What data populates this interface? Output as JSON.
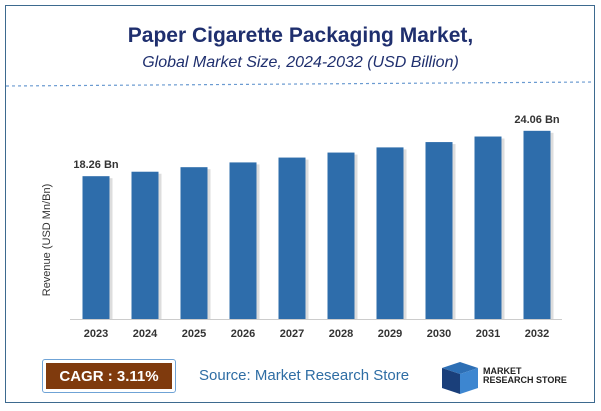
{
  "chart_data": {
    "type": "bar",
    "title": "Paper Cigarette Packaging Market,",
    "subtitle": "Global Market Size, 2024-2032 (USD Billion)",
    "ylabel": "Revenue (USD Mn/Bn)",
    "xlabel": "",
    "categories": [
      "2023",
      "2024",
      "2025",
      "2026",
      "2027",
      "2028",
      "2029",
      "2030",
      "2031",
      "2032"
    ],
    "values": [
      18.26,
      18.83,
      19.41,
      20.02,
      20.64,
      21.28,
      21.94,
      22.62,
      23.33,
      24.06
    ],
    "data_labels": {
      "0": "18.26 Bn",
      "9": "24.06 Bn"
    },
    "ylim": [
      0,
      28
    ],
    "bar_color": "#2e6dab",
    "grid": false
  },
  "footer": {
    "cagr": "CAGR : 3.11%",
    "source": "Source: Market Research Store",
    "logo_text": [
      "MARKET",
      "RESEARCH STORE"
    ]
  }
}
